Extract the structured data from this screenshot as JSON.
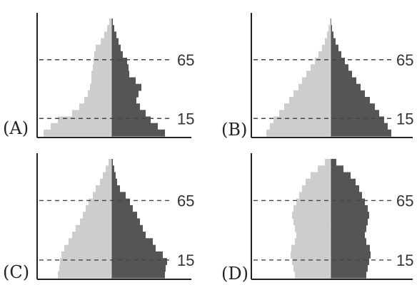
{
  "colors": {
    "female": "#cdcdcd",
    "male": "#555555",
    "axis": "#222222",
    "text": "#222222"
  },
  "chart_data": [
    {
      "type": "bar",
      "panel": "(A)",
      "reference_ticks": [
        "65",
        "15"
      ],
      "reference_values": [
        65,
        15
      ],
      "ylim": [
        0,
        100
      ],
      "ages": [
        0,
        5,
        10,
        15,
        20,
        25,
        30,
        35,
        40,
        45,
        50,
        55,
        60,
        65,
        70,
        75,
        80,
        85
      ],
      "series": [
        {
          "values": [
            95,
            85,
            75,
            55,
            45,
            38,
            33,
            30,
            28,
            28,
            26,
            25,
            24,
            22,
            15,
            10,
            6,
            3
          ]
        },
        {
          "values": [
            75,
            65,
            55,
            48,
            40,
            35,
            38,
            42,
            34,
            25,
            24,
            22,
            16,
            13,
            10,
            7,
            4,
            2
          ]
        }
      ]
    },
    {
      "type": "bar",
      "panel": "(B)",
      "reference_ticks": [
        "65",
        "15"
      ],
      "reference_values": [
        65,
        15
      ],
      "ylim": [
        0,
        100
      ],
      "ages": [
        0,
        5,
        10,
        15,
        20,
        25,
        30,
        35,
        40,
        45,
        50,
        55,
        60,
        65,
        70,
        75,
        80,
        85
      ],
      "series": [
        {
          "values": [
            90,
            85,
            80,
            72,
            65,
            58,
            52,
            45,
            40,
            34,
            28,
            22,
            17,
            12,
            8,
            5,
            3,
            1
          ]
        },
        {
          "values": [
            85,
            80,
            75,
            68,
            62,
            55,
            48,
            42,
            36,
            30,
            25,
            20,
            15,
            11,
            7,
            4,
            2,
            1
          ]
        }
      ]
    },
    {
      "type": "bar",
      "panel": "(C)",
      "reference_ticks": [
        "65",
        "15"
      ],
      "reference_values": [
        65,
        15
      ],
      "ylim": [
        0,
        100
      ],
      "ages": [
        0,
        5,
        10,
        15,
        20,
        25,
        30,
        35,
        40,
        45,
        50,
        55,
        60,
        65,
        70,
        75,
        80,
        85
      ],
      "series": [
        {
          "values": [
            75,
            73,
            72,
            70,
            66,
            60,
            55,
            50,
            44,
            40,
            36,
            32,
            26,
            22,
            16,
            12,
            8,
            4
          ]
        },
        {
          "values": [
            75,
            76,
            78,
            72,
            62,
            58,
            48,
            44,
            40,
            36,
            30,
            26,
            20,
            12,
            8,
            6,
            4,
            2
          ]
        }
      ]
    },
    {
      "type": "bar",
      "panel": "(D)",
      "reference_ticks": [
        "65",
        "15"
      ],
      "reference_values": [
        65,
        15
      ],
      "ylim": [
        0,
        100
      ],
      "ages": [
        0,
        5,
        10,
        15,
        20,
        25,
        30,
        35,
        40,
        45,
        50,
        55,
        60,
        65,
        70,
        75,
        80,
        85
      ],
      "series": [
        {
          "values": [
            50,
            52,
            54,
            56,
            55,
            50,
            48,
            50,
            52,
            54,
            52,
            48,
            44,
            40,
            35,
            28,
            18,
            8
          ]
        },
        {
          "values": [
            50,
            52,
            54,
            56,
            55,
            50,
            48,
            50,
            52,
            54,
            52,
            48,
            44,
            40,
            35,
            28,
            18,
            8
          ]
        }
      ]
    }
  ]
}
